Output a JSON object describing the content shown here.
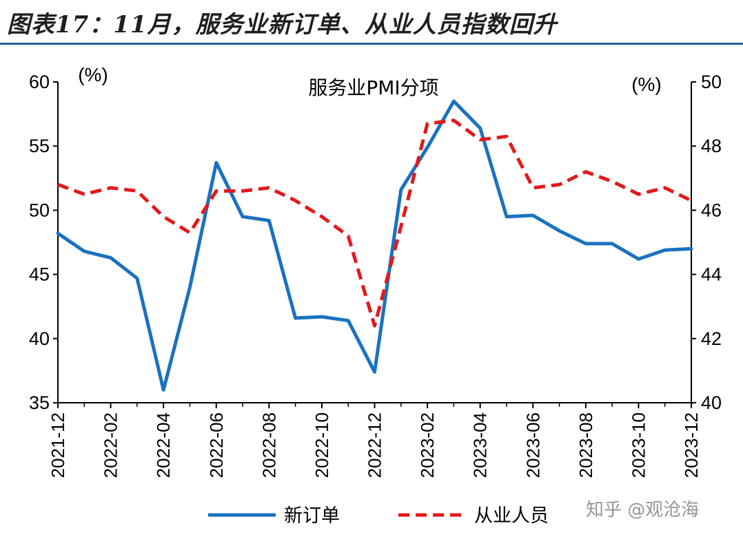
{
  "figure_title": "图表17：11月，服务业新订单、从业人员指数回升",
  "watermark": "知乎 @观沧海",
  "colors": {
    "new_orders": "#1a72bf",
    "employment": "#e3191c",
    "axis": "#000000",
    "title_rule": "#1f5f9e"
  },
  "chart_data": {
    "type": "line",
    "title": "服务业PMI分项",
    "y_left_unit": "(%)",
    "y_right_unit": "(%)",
    "y_left_lim": [
      35,
      60
    ],
    "y_left_ticks": [
      35,
      40,
      45,
      50,
      55,
      60
    ],
    "y_right_lim": [
      40,
      50
    ],
    "y_right_ticks": [
      40,
      42,
      44,
      46,
      48,
      50
    ],
    "grid": false,
    "legend_position": "bottom",
    "x": [
      "2021-12",
      "2022-01",
      "2022-02",
      "2022-03",
      "2022-04",
      "2022-05",
      "2022-06",
      "2022-07",
      "2022-08",
      "2022-09",
      "2022-10",
      "2022-11",
      "2022-12",
      "2023-01",
      "2023-02",
      "2023-03",
      "2023-04",
      "2023-05",
      "2023-06",
      "2023-07",
      "2023-08",
      "2023-09",
      "2023-10",
      "2023-11",
      "2023-12"
    ],
    "x_tick_labels": [
      "2021-12",
      "2022-02",
      "2022-04",
      "2022-06",
      "2022-08",
      "2022-10",
      "2022-12",
      "2023-02",
      "2023-04",
      "2023-06",
      "2023-08",
      "2023-10",
      "2023-12"
    ],
    "series": [
      {
        "name": "新订单",
        "axis": "left",
        "style": "solid",
        "values": [
          48.2,
          46.8,
          46.3,
          44.7,
          36.0,
          44.0,
          53.7,
          49.5,
          49.2,
          41.6,
          41.7,
          41.4,
          37.4,
          51.6,
          54.9,
          58.5,
          56.4,
          49.5,
          49.6,
          48.4,
          47.4,
          47.4,
          46.2,
          46.9,
          47.0
        ]
      },
      {
        "name": "从业人员",
        "axis": "right",
        "style": "dashed",
        "values": [
          46.8,
          46.5,
          46.7,
          46.6,
          45.8,
          45.3,
          46.6,
          46.6,
          46.7,
          46.3,
          45.8,
          45.2,
          42.4,
          45.5,
          48.7,
          48.8,
          48.2,
          48.3,
          46.7,
          46.8,
          47.2,
          46.9,
          46.5,
          46.7,
          46.3
        ]
      }
    ]
  }
}
